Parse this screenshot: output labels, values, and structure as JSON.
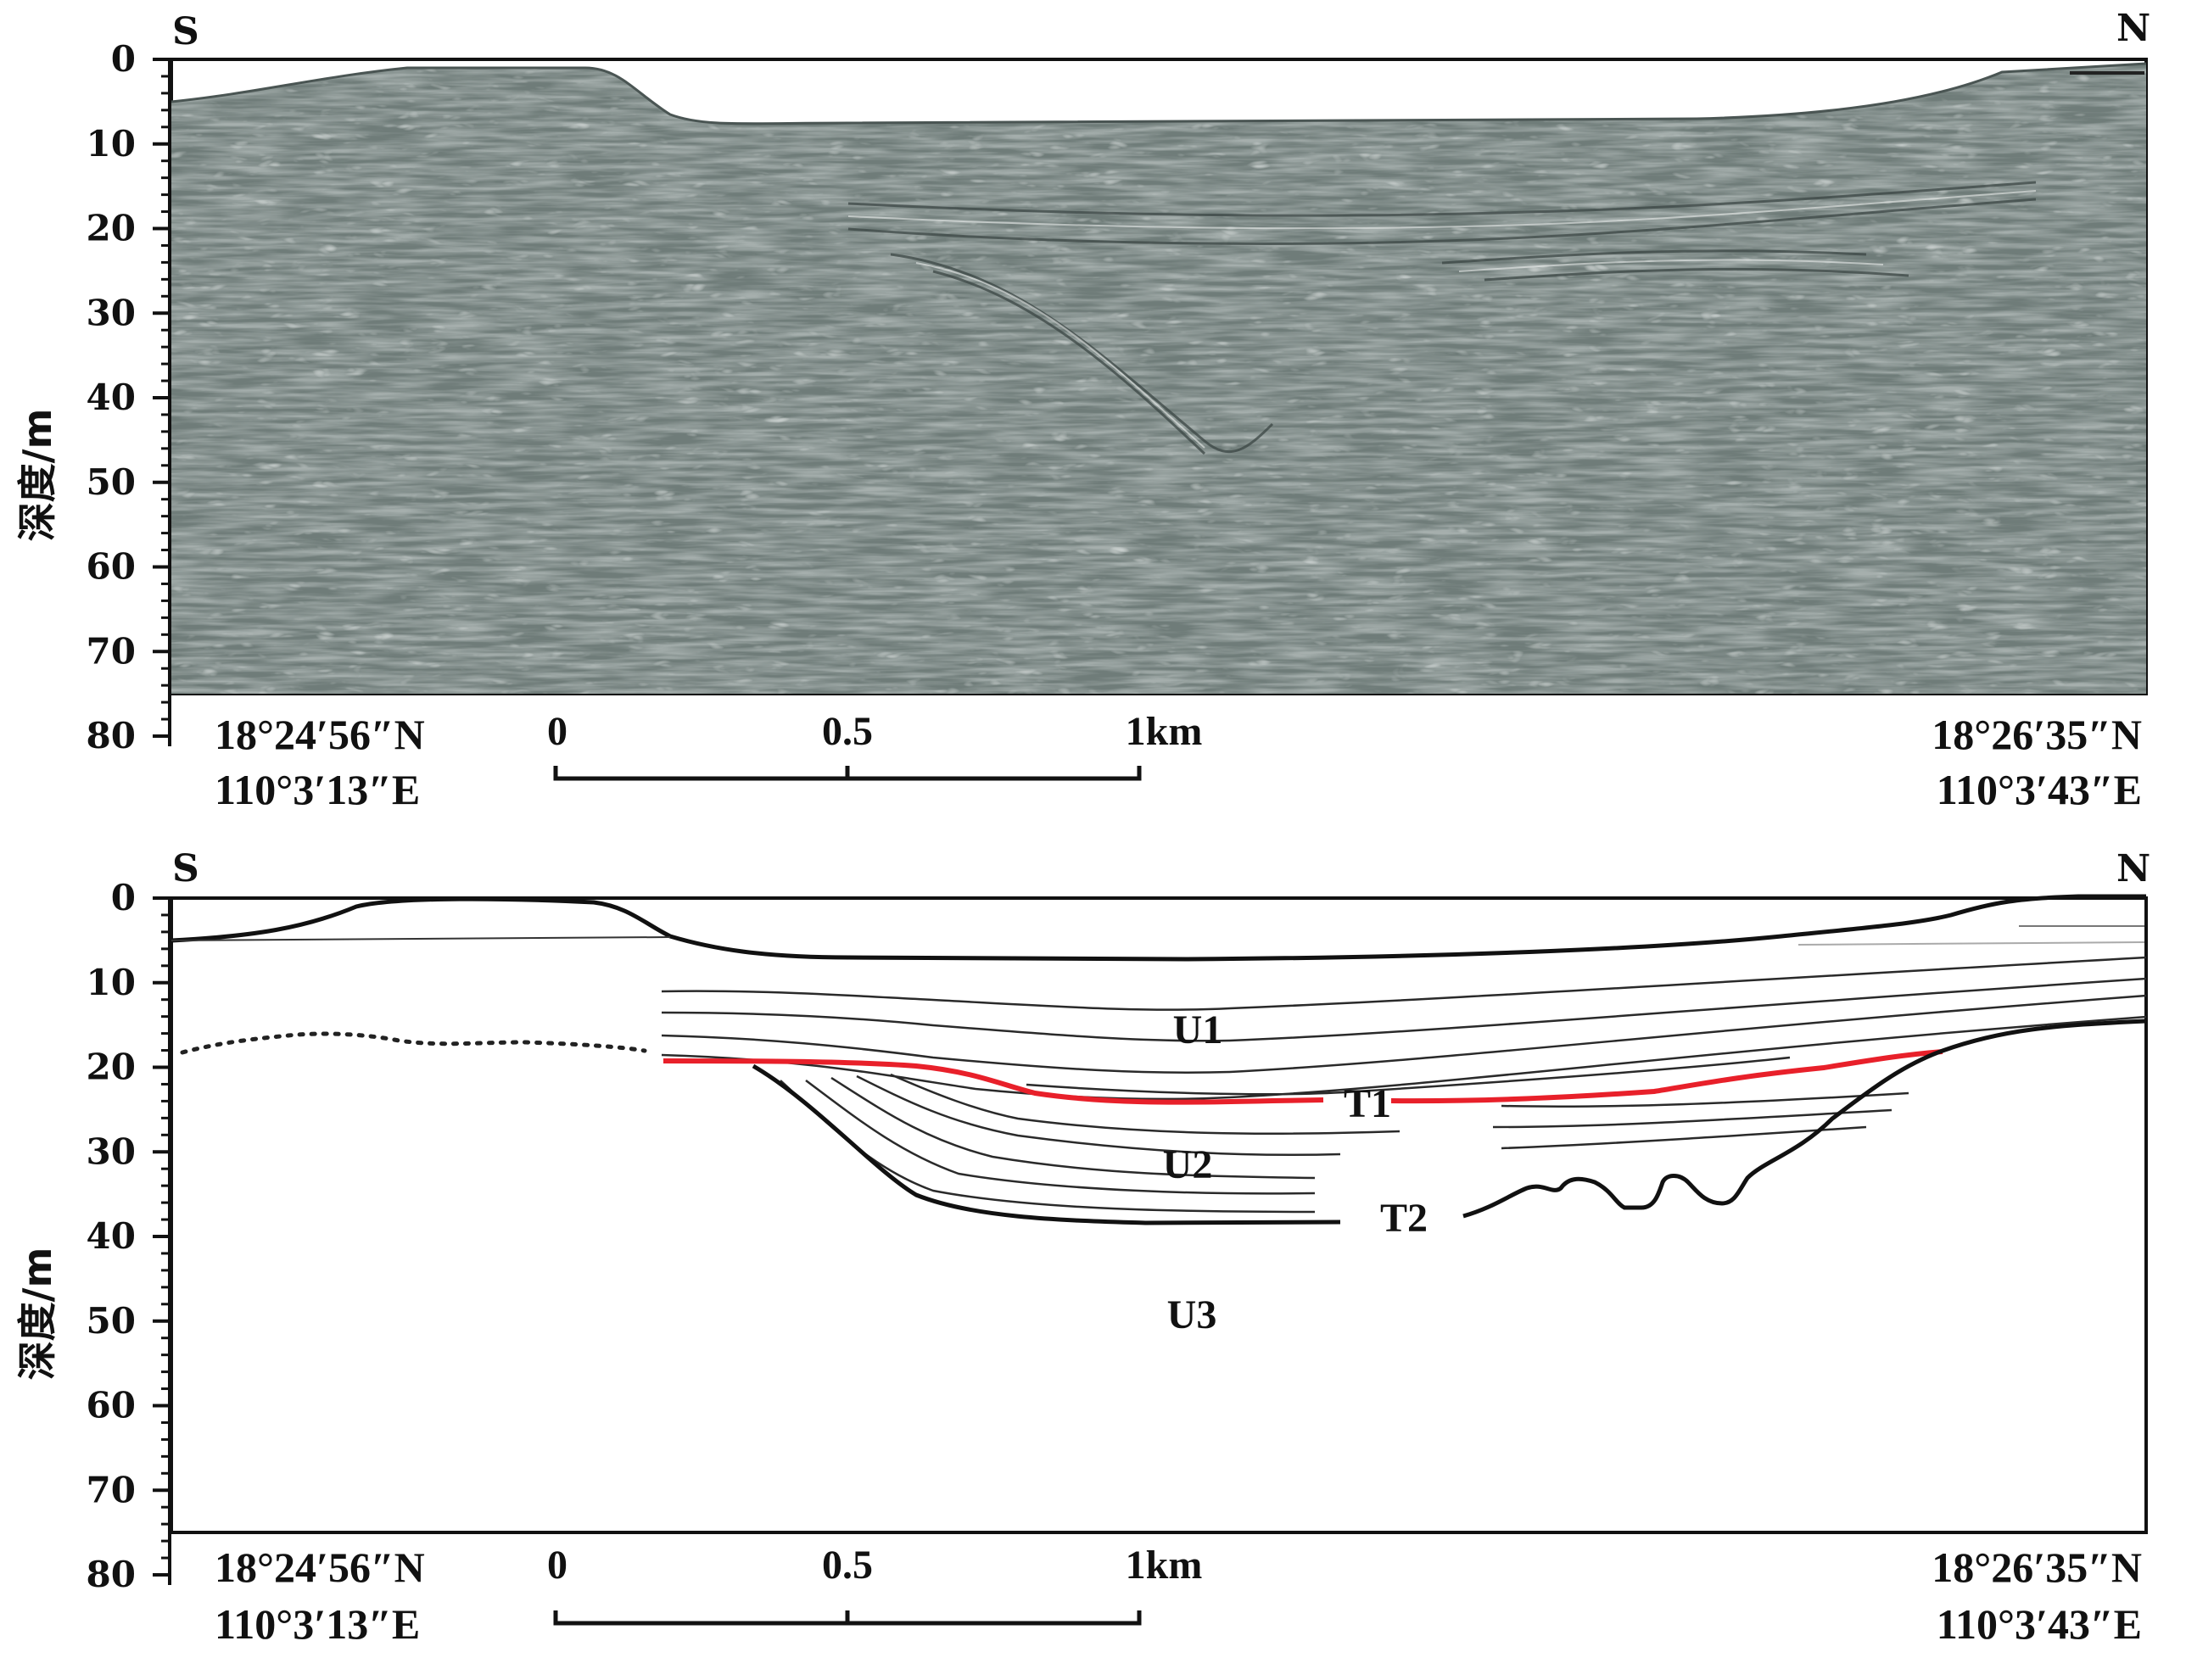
{
  "top_panel": {
    "left_dir": "S",
    "right_dir": "N",
    "ylabel": "深度/m",
    "depth_ticks": [
      "0",
      "10",
      "20",
      "30",
      "40",
      "50",
      "60",
      "70",
      "80"
    ],
    "left_coord": [
      "18°24′56″N",
      "110°3′13″E"
    ],
    "right_coord": [
      "18°26′35″N",
      "110°3′43″E"
    ],
    "scale": [
      "0",
      "0.5",
      "1km"
    ]
  },
  "bottom_panel": {
    "left_dir": "S",
    "right_dir": "N",
    "ylabel": "深度/m",
    "depth_ticks": [
      "0",
      "10",
      "20",
      "30",
      "40",
      "50",
      "60",
      "70",
      "80"
    ],
    "left_coord": [
      "18°24′56″N",
      "110°3′13″E"
    ],
    "right_coord": [
      "18°26′35″N",
      "110°3′43″E"
    ],
    "scale": [
      "0",
      "0.5",
      "1km"
    ],
    "units": {
      "u1": "U1",
      "u2": "U2",
      "u3": "U3",
      "t1": "T1",
      "t2": "T2"
    },
    "colors": {
      "t1_reflector": "#e8202a",
      "layers": "#2a2a2a",
      "seismic_bg": "#6f7c79"
    }
  }
}
